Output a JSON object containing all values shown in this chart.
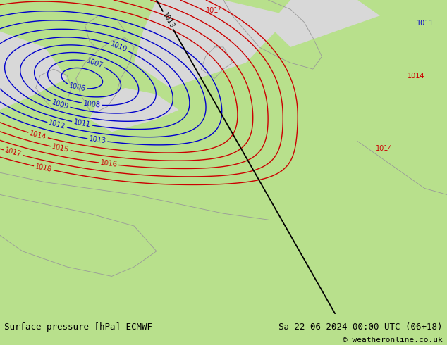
{
  "title_left": "Surface pressure [hPa] ECMWF",
  "title_right": "Sa 22-06-2024 00:00 UTC (06+18)",
  "copyright": "© weatheronline.co.uk",
  "bg_color_land": "#b8e08c",
  "bg_color_sea": "#d8d8d8",
  "blue_contour_color": "#0000cc",
  "red_contour_color": "#cc0000",
  "black_contour_color": "#000000",
  "gray_coast_color": "#999999",
  "bottom_bar_color": "#ffffff",
  "label_fontsize": 7,
  "title_fontsize": 9,
  "figwidth": 6.34,
  "figheight": 4.9
}
